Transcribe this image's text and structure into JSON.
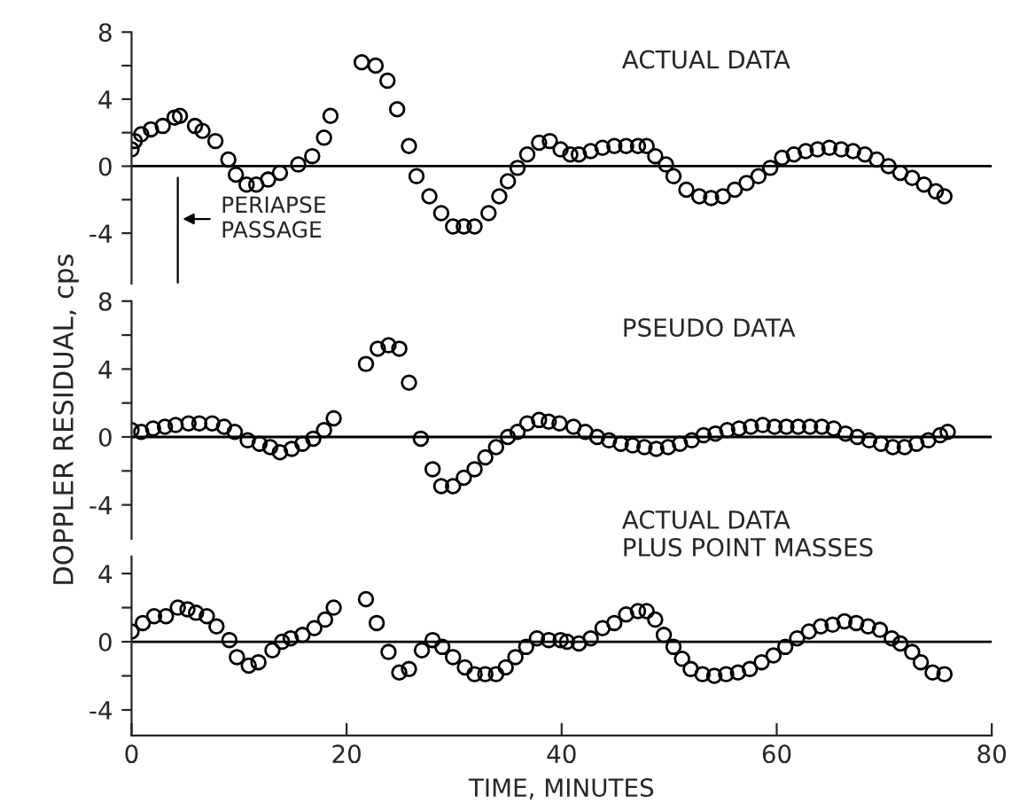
{
  "chart_data": [
    {
      "type": "scatter",
      "marker": "circle",
      "color": "#000000",
      "x": [
        0,
        0.3,
        0.9,
        1.8,
        2.9,
        4.0,
        4.5,
        5.9,
        6.6,
        7.8,
        9.0,
        9.7,
        10.7,
        11.6,
        12.7,
        13.8,
        15.5,
        16.8,
        17.9,
        18.5,
        21.4,
        22.7,
        23.8,
        24.7,
        25.8,
        26.5,
        27.7,
        28.8,
        29.9,
        30.9,
        31.9,
        33.2,
        34.2,
        35.0,
        35.9,
        36.8,
        37.9,
        38.9,
        39.9,
        40.8,
        41.6,
        42.7,
        43.8,
        44.9,
        46.0,
        47.1,
        47.9,
        48.7,
        49.7,
        50.4,
        51.6,
        52.8,
        53.9,
        55.0,
        56.1,
        57.2,
        58.3,
        59.4,
        60.5,
        61.6,
        62.7,
        63.8,
        64.9,
        66.0,
        67.1,
        68.2,
        69.3,
        70.4,
        71.5,
        72.6,
        73.7,
        74.8,
        75.6
      ],
      "values": [
        1.0,
        1.5,
        1.9,
        2.2,
        2.4,
        2.9,
        3.0,
        2.4,
        2.1,
        1.5,
        0.4,
        -0.5,
        -1.1,
        -1.1,
        -0.8,
        -0.4,
        0.1,
        0.6,
        1.7,
        3.0,
        6.2,
        6.0,
        5.1,
        3.4,
        1.2,
        -0.6,
        -1.8,
        -2.8,
        -3.6,
        -3.6,
        -3.6,
        -2.8,
        -1.8,
        -0.9,
        -0.1,
        0.7,
        1.4,
        1.5,
        1.0,
        0.7,
        0.7,
        0.9,
        1.1,
        1.2,
        1.2,
        1.2,
        1.2,
        0.6,
        0.1,
        -0.6,
        -1.4,
        -1.8,
        -1.9,
        -1.8,
        -1.4,
        -1.0,
        -0.6,
        -0.1,
        0.5,
        0.7,
        0.9,
        1.0,
        1.1,
        1.0,
        0.9,
        0.7,
        0.4,
        0.0,
        -0.4,
        -0.7,
        -1.1,
        -1.5,
        -1.8
      ],
      "xlim": [
        0,
        80
      ],
      "ylim": [
        -7,
        8
      ],
      "yticks": [
        8,
        {
          "value": 6,
          "label": null
        },
        4,
        {
          "value": 2,
          "label": null
        },
        0,
        {
          "value": -2,
          "label": null
        },
        -4
      ],
      "tick_labels": "y",
      "ref_lines": [
        {
          "axis": "y",
          "value": 0,
          "label": null
        },
        {
          "axis": "x",
          "value": 4.3,
          "label": "PERIAPSE\nPASSAGE"
        }
      ],
      "annotations": [
        "ACTUAL DATA"
      ]
    },
    {
      "type": "scatter",
      "marker": "circle",
      "color": "#000000",
      "x": [
        0,
        0.9,
        2.0,
        3.1,
        4.1,
        5.3,
        6.3,
        7.5,
        8.6,
        9.6,
        10.8,
        11.9,
        12.9,
        13.8,
        14.9,
        15.9,
        16.9,
        17.9,
        18.8,
        21.8,
        22.9,
        23.9,
        24.9,
        25.8,
        26.9,
        28.0,
        28.8,
        29.9,
        30.9,
        31.9,
        32.9,
        33.9,
        35.0,
        35.9,
        36.8,
        37.9,
        38.8,
        39.8,
        41.1,
        42.2,
        43.3,
        44.4,
        45.5,
        46.6,
        47.7,
        48.8,
        49.9,
        51.0,
        52.1,
        53.2,
        54.3,
        55.4,
        56.5,
        57.6,
        58.7,
        59.8,
        60.9,
        62.0,
        63.1,
        64.2,
        65.3,
        66.4,
        67.5,
        68.6,
        69.7,
        70.8,
        71.9,
        73.0,
        74.1,
        75.2,
        75.9
      ],
      "values": [
        0.4,
        0.3,
        0.5,
        0.6,
        0.7,
        0.8,
        0.8,
        0.8,
        0.6,
        0.3,
        -0.2,
        -0.4,
        -0.6,
        -0.9,
        -0.7,
        -0.4,
        -0.1,
        0.4,
        1.1,
        4.3,
        5.2,
        5.4,
        5.2,
        3.2,
        -0.1,
        -1.9,
        -2.9,
        -2.9,
        -2.4,
        -1.9,
        -1.2,
        -0.6,
        0.0,
        0.3,
        0.8,
        1.0,
        0.9,
        0.8,
        0.6,
        0.3,
        0.0,
        -0.2,
        -0.4,
        -0.5,
        -0.6,
        -0.7,
        -0.6,
        -0.4,
        -0.2,
        0.1,
        0.2,
        0.4,
        0.5,
        0.6,
        0.7,
        0.6,
        0.6,
        0.6,
        0.6,
        0.6,
        0.5,
        0.2,
        0.0,
        -0.2,
        -0.4,
        -0.6,
        -0.6,
        -0.4,
        -0.2,
        0.1,
        0.3
      ],
      "xlim": [
        0,
        80
      ],
      "ylim": [
        -6,
        8
      ],
      "yticks": [
        8,
        {
          "value": 6,
          "label": null
        },
        4,
        {
          "value": 2,
          "label": null
        },
        0,
        {
          "value": -2,
          "label": null
        },
        -4
      ],
      "tick_labels": "y",
      "ylabel": "DOPPLER RESIDUAL, cps",
      "ref_lines": [
        {
          "axis": "y",
          "value": 0,
          "label": null
        }
      ],
      "annotations": [
        "PSEUDO DATA"
      ]
    },
    {
      "type": "scatter",
      "marker": "circle",
      "color": "#000000",
      "x": [
        0,
        1.05,
        2.1,
        3.2,
        4.3,
        5.2,
        6.0,
        7.0,
        7.9,
        9.1,
        9.8,
        10.9,
        11.8,
        13.1,
        14.0,
        14.8,
        15.9,
        17.0,
        18.0,
        18.8,
        21.8,
        22.8,
        23.9,
        24.9,
        25.8,
        27.0,
        28.0,
        28.9,
        29.9,
        31.0,
        31.9,
        32.9,
        33.9,
        34.8,
        35.7,
        36.7,
        37.7,
        38.8,
        39.9,
        40.5,
        41.6,
        42.7,
        43.8,
        44.9,
        46.0,
        47.1,
        47.9,
        48.7,
        49.5,
        50.4,
        51.2,
        52.0,
        53.1,
        54.2,
        55.3,
        56.4,
        57.5,
        58.6,
        59.7,
        60.8,
        61.9,
        63.0,
        64.1,
        65.2,
        66.3,
        67.4,
        68.5,
        69.6,
        70.7,
        71.5,
        72.6,
        73.4,
        74.5,
        75.6
      ],
      "values": [
        0.6,
        1.1,
        1.5,
        1.5,
        2.0,
        1.9,
        1.7,
        1.5,
        0.9,
        0.1,
        -0.9,
        -1.4,
        -1.2,
        -0.5,
        0.0,
        0.2,
        0.4,
        0.8,
        1.3,
        2.0,
        2.5,
        1.1,
        -0.6,
        -1.8,
        -1.6,
        -0.5,
        0.1,
        -0.3,
        -0.9,
        -1.5,
        -1.9,
        -1.9,
        -1.9,
        -1.5,
        -0.9,
        -0.3,
        0.2,
        0.1,
        0.1,
        0.0,
        -0.1,
        0.2,
        0.8,
        1.1,
        1.6,
        1.8,
        1.8,
        1.3,
        0.4,
        -0.3,
        -1.0,
        -1.6,
        -1.9,
        -2.0,
        -1.9,
        -1.8,
        -1.6,
        -1.2,
        -0.8,
        -0.3,
        0.2,
        0.6,
        0.9,
        1.0,
        1.2,
        1.1,
        0.9,
        0.7,
        0.2,
        -0.1,
        -0.6,
        -1.2,
        -1.8,
        -1.9
      ],
      "xlim": [
        0,
        80
      ],
      "ylim": [
        -5.5,
        5
      ],
      "xticks": [
        0,
        20,
        40,
        60,
        80
      ],
      "yticks": [
        4,
        {
          "value": 2,
          "label": null
        },
        0,
        {
          "value": -2,
          "label": null
        },
        -4
      ],
      "xlabel": "TIME, MINUTES",
      "ref_lines": [
        {
          "axis": "y",
          "value": 0,
          "label": null
        }
      ],
      "annotations": [
        "ACTUAL DATA\nPLUS POINT MASSES"
      ]
    }
  ]
}
